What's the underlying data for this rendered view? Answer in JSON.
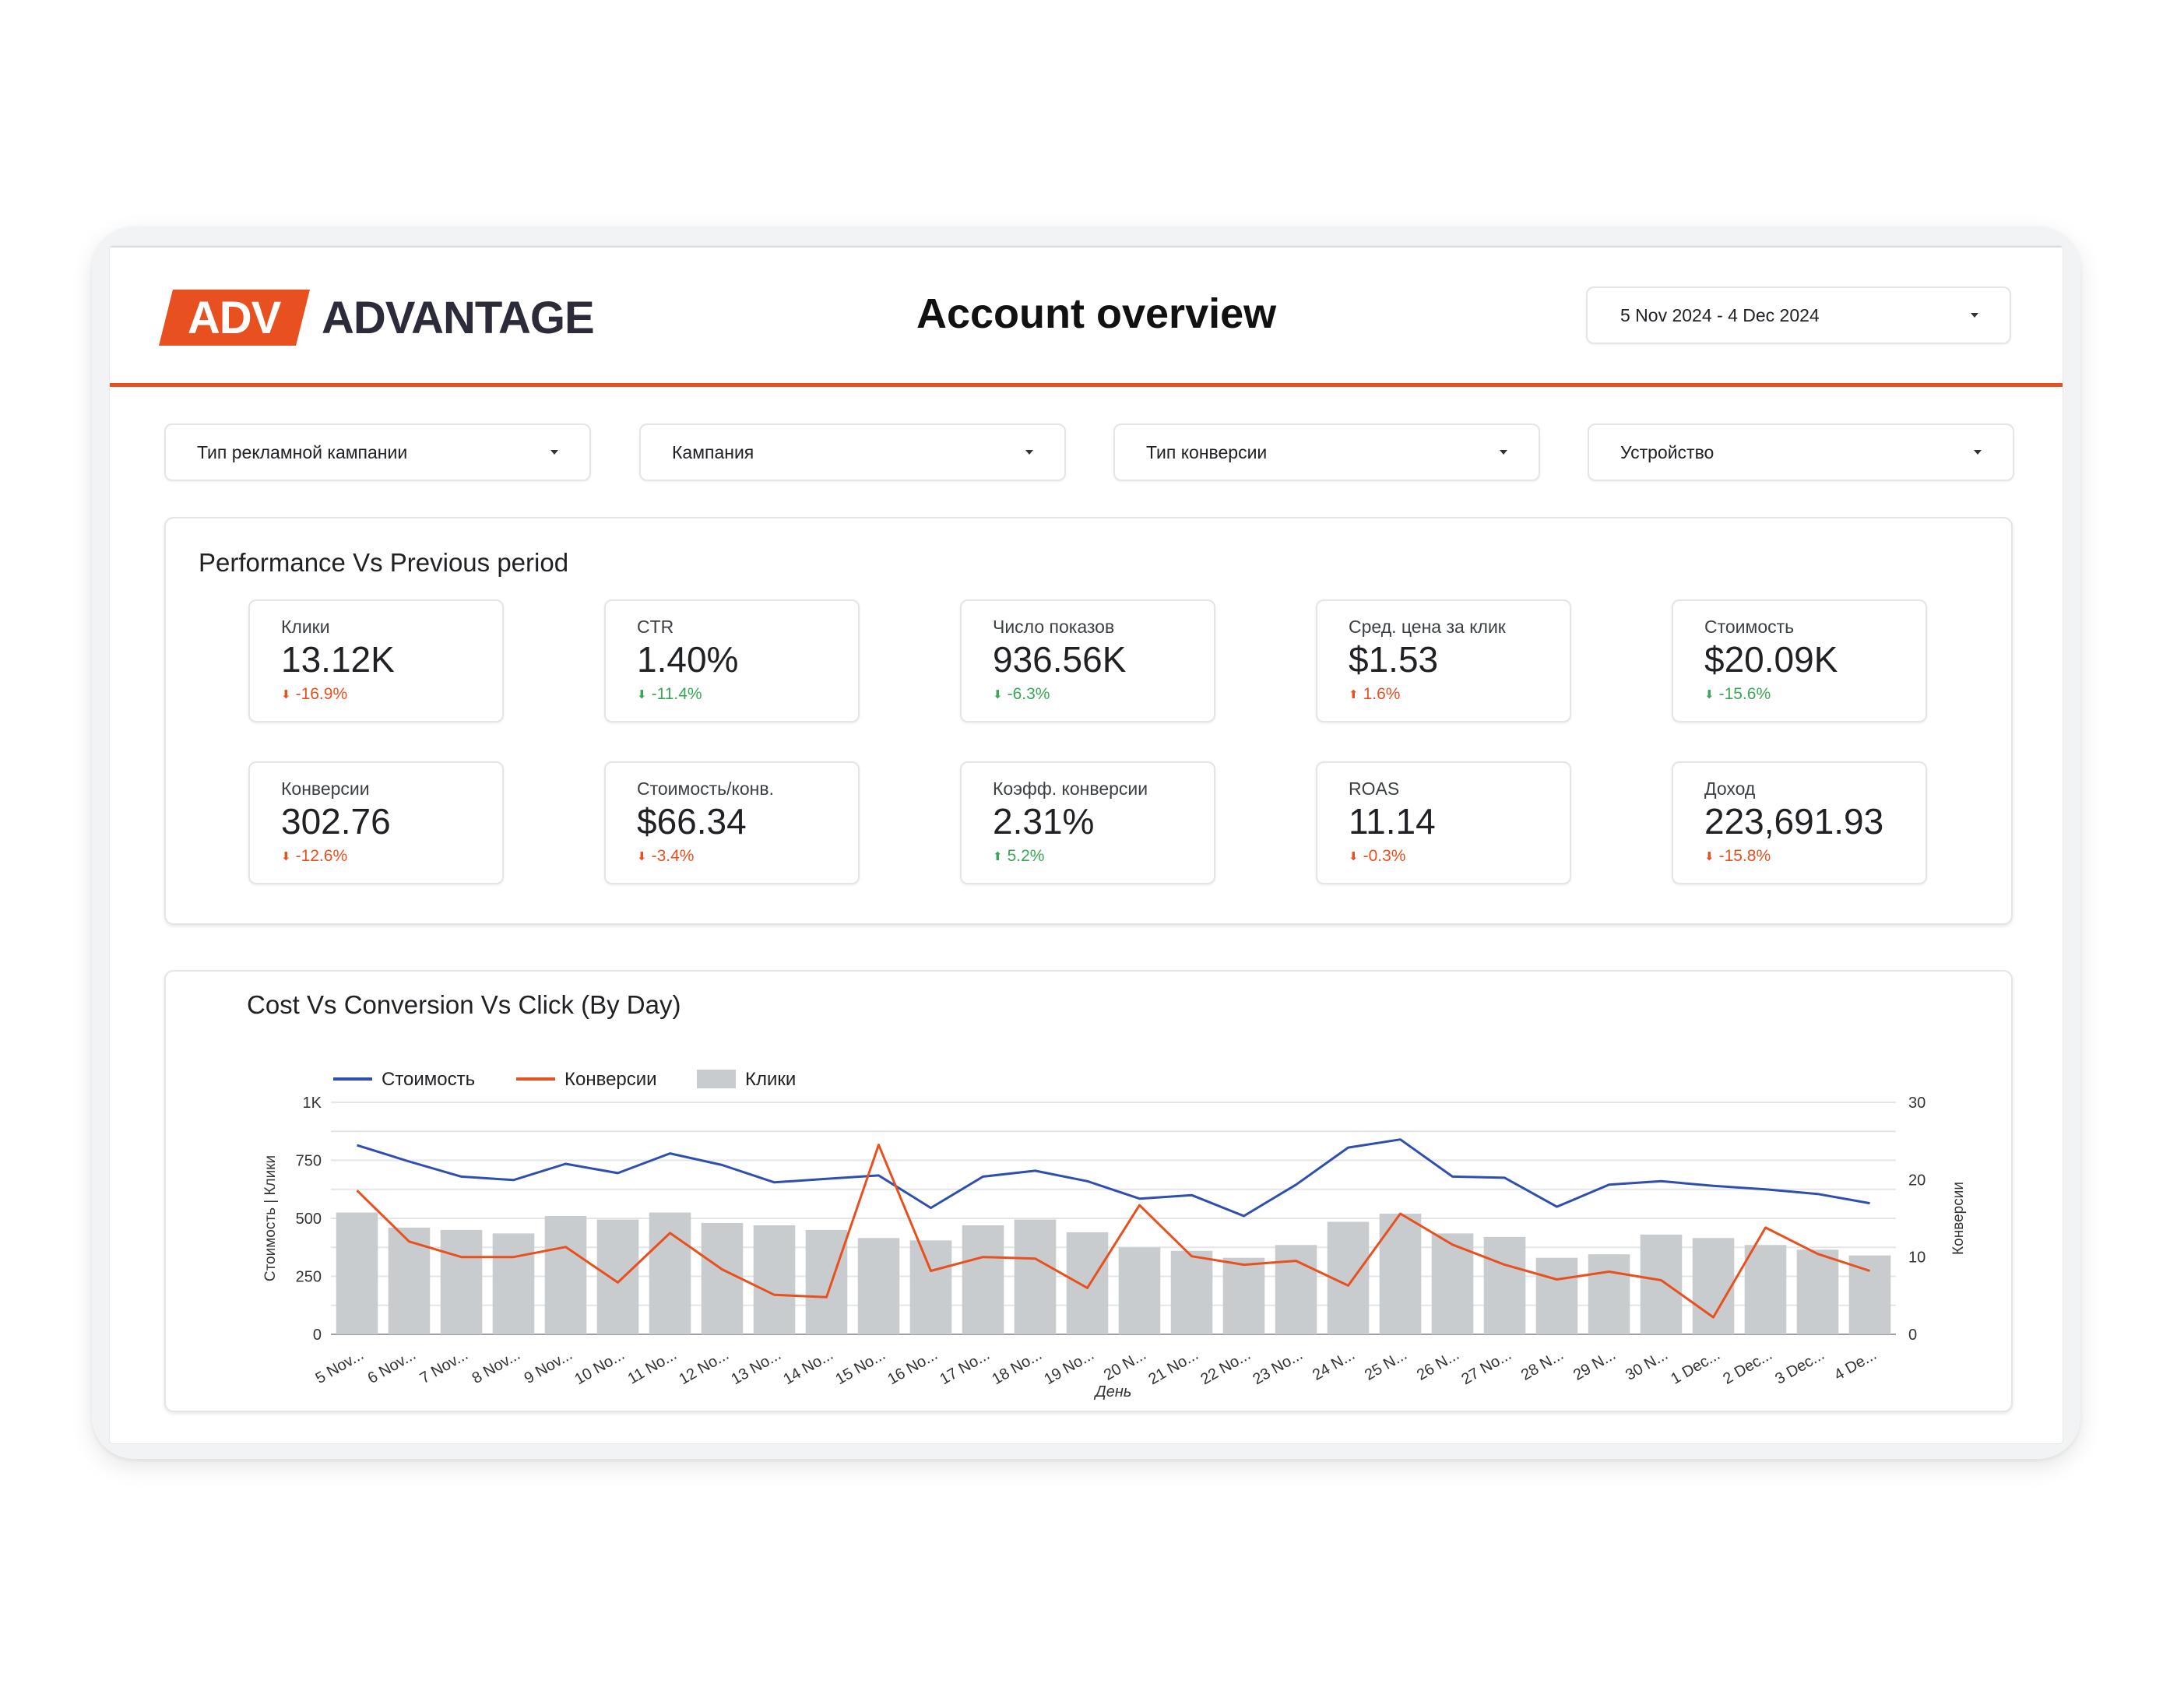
{
  "header": {
    "logo_badge": "ADV",
    "logo_text": "ADVANTAGE",
    "title": "Account overview",
    "date_range": "5 Nov 2024 - 4 Dec 2024"
  },
  "filters": [
    {
      "label": "Тип рекламной кампании"
    },
    {
      "label": "Кампания"
    },
    {
      "label": "Тип конверсии"
    },
    {
      "label": "Устройство"
    }
  ],
  "performance": {
    "title": "Performance Vs Previous period",
    "cards": [
      {
        "label": "Клики",
        "value": "13.12K",
        "change": "-16.9%",
        "direction": "down",
        "status": "bad"
      },
      {
        "label": "CTR",
        "value": "1.40%",
        "change": "-11.4%",
        "direction": "down",
        "status": "good"
      },
      {
        "label": "Число показов",
        "value": "936.56K",
        "change": "-6.3%",
        "direction": "down",
        "status": "good"
      },
      {
        "label": "Сред. цена за клик",
        "value": "$1.53",
        "change": "1.6%",
        "direction": "up",
        "status": "bad"
      },
      {
        "label": "Стоимость",
        "value": "$20.09K",
        "change": "-15.6%",
        "direction": "down",
        "status": "good"
      },
      {
        "label": "Конверсии",
        "value": "302.76",
        "change": "-12.6%",
        "direction": "down",
        "status": "bad"
      },
      {
        "label": "Стоимость/конв.",
        "value": "$66.34",
        "change": "-3.4%",
        "direction": "down",
        "status": "bad"
      },
      {
        "label": "Коэфф. конверсии",
        "value": "2.31%",
        "change": "5.2%",
        "direction": "up",
        "status": "good"
      },
      {
        "label": "ROAS",
        "value": "11.14",
        "change": "-0.3%",
        "direction": "down",
        "status": "bad"
      },
      {
        "label": "Доход",
        "value": "223,691.93",
        "change": "-15.8%",
        "direction": "down",
        "status": "bad"
      }
    ]
  },
  "colors": {
    "accent": "#e8501f",
    "good": "#3aa757",
    "bad": "#e8501f",
    "line_cost": "#2f4fb0",
    "line_conv": "#e8501f",
    "bars": "#c9cccf"
  },
  "chart_data": {
    "type": "bar",
    "title": "Cost Vs Conversion Vs Click (By Day)",
    "xlabel": "День",
    "ylabel_left": "Стоимость | Клики",
    "ylabel_right": "Конверсии",
    "ylim_left": [
      0,
      1000
    ],
    "ylim_right": [
      0,
      30
    ],
    "y_ticks_left": [
      "0",
      "250",
      "500",
      "750",
      "1K"
    ],
    "y_ticks_right": [
      "0",
      "10",
      "20",
      "30"
    ],
    "legend_position": "top-left",
    "categories": [
      "5 Nov...",
      "6 Nov...",
      "7 Nov...",
      "8 Nov...",
      "9 Nov...",
      "10 No...",
      "11 No...",
      "12 No...",
      "13 No...",
      "14 No...",
      "15 No...",
      "16 No...",
      "17 No...",
      "18 No...",
      "19 No...",
      "20 N...",
      "21 No...",
      "22 No...",
      "23 No...",
      "24 N...",
      "25 N...",
      "26 N...",
      "27 No...",
      "28 N...",
      "29 N...",
      "30 N...",
      "1 Dec...",
      "2 Dec...",
      "3 Dec...",
      "4 De..."
    ],
    "series": [
      {
        "name": "Стоимость",
        "kind": "line",
        "axis": "left",
        "values": [
          815,
          745,
          680,
          665,
          735,
          695,
          780,
          730,
          655,
          670,
          685,
          545,
          680,
          705,
          660,
          585,
          600,
          510,
          645,
          805,
          840,
          680,
          675,
          550,
          645,
          660,
          640,
          625,
          605,
          565
        ]
      },
      {
        "name": "Конверсии",
        "kind": "line",
        "axis": "right",
        "values": [
          18.6,
          12,
          10,
          10,
          11.3,
          6.7,
          13.1,
          8.4,
          5.1,
          4.8,
          24.5,
          8.2,
          10,
          9.8,
          6,
          16.7,
          10.1,
          9,
          9.5,
          6.3,
          15.6,
          11.6,
          9,
          7.1,
          8.1,
          7,
          2.2,
          13.8,
          10.4,
          8.2
        ]
      },
      {
        "name": "Клики",
        "kind": "bar",
        "axis": "left",
        "values": [
          525,
          460,
          450,
          435,
          510,
          495,
          525,
          480,
          470,
          450,
          415,
          405,
          470,
          495,
          440,
          375,
          360,
          330,
          385,
          485,
          520,
          435,
          420,
          330,
          345,
          430,
          415,
          385,
          365,
          340
        ]
      }
    ]
  }
}
